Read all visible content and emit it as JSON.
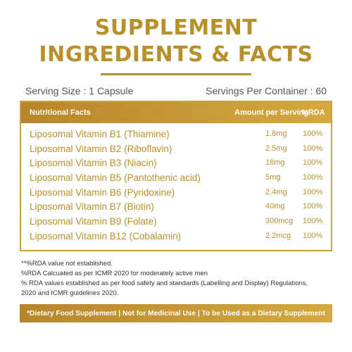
{
  "title_line1": "SUPPLEMENT",
  "title_line2": "INGREDIENTS & FACTS",
  "serving_size": "Serving Size : 1 Capsule",
  "servings_per_container": "Servings Per Container : 60",
  "table_header": {
    "name": "Nutritional Facts",
    "amount": "Amount per Serving",
    "rda": "%RDA"
  },
  "rows": [
    {
      "name": "Liposomal Vitamin B1 (Thiamine)",
      "amount": "1.8mg",
      "rda": "100%"
    },
    {
      "name": "Liposomal Vitamin B2 (Riboflavin)",
      "amount": "2.5mg",
      "rda": "100%"
    },
    {
      "name": "Liposomal Vitamin B3 (Niacin)",
      "amount": "18mg",
      "rda": "100%"
    },
    {
      "name": "Liposomal Vitamin B5 (Pantothenic acid)",
      "amount": "5mg",
      "rda": "100%"
    },
    {
      "name": "Liposomal Vitamin B6 (Pyridoxine)",
      "amount": "2.4mg",
      "rda": "100%"
    },
    {
      "name": "Liposomal Vitamin B7 (Biotin)",
      "amount": "40mg",
      "rda": "100%"
    },
    {
      "name": "Liposomal Vitamin B9 (Folate)",
      "amount": "300mcg",
      "rda": "100%"
    },
    {
      "name": "Liposomal Vitamin B12 (Cobalamin)",
      "amount": "2.2mcg",
      "rda": "100%"
    }
  ],
  "notes": [
    "**%RDA value not established.",
    "%RDA Calcuated as per ICMR 2020 for moderately active men",
    "% RDA values established as per food safety and standards (Labelling and Display) Regulations,",
    "2020 and ICMR guidelines 2020."
  ],
  "disclaimer": "*Dietary Food Supplement | Not for Medicinal Use | To be Used as a Dietary Supplement",
  "colors": {
    "accent": "#b8902b",
    "header_bg": "#c49a35"
  }
}
